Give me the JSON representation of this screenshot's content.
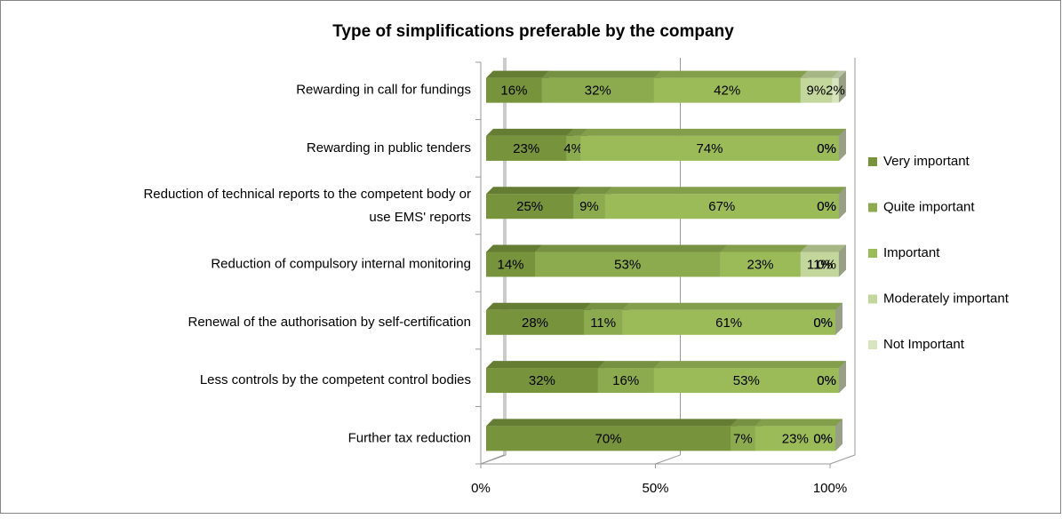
{
  "chart_data": {
    "type": "stacked_bar_horizontal",
    "title": "Type of simplifications preferable by the company",
    "categories": [
      "Rewarding in call for fundings",
      "Rewarding in public tenders",
      "Reduction of technical reports to the competent body or use EMS' reports",
      "Reduction of compulsory internal monitoring",
      "Renewal of the authorisation by self-certification",
      "Less controls by the competent control bodies",
      "Further tax reduction"
    ],
    "series": [
      {
        "name": "Very important",
        "color": "#77933c",
        "values": [
          16,
          23,
          25,
          14,
          28,
          32,
          70
        ],
        "value_labels": [
          "16%",
          "23%",
          "25%",
          "14%",
          "28%",
          "32%",
          "70%"
        ]
      },
      {
        "name": "Quite important",
        "color": "#8cab4e",
        "values": [
          32,
          4,
          9,
          53,
          11,
          16,
          7
        ],
        "value_labels": [
          "32%",
          "4%",
          "9%",
          "53%",
          "11%",
          "16%",
          "7%"
        ]
      },
      {
        "name": "Important",
        "color": "#9bbb59",
        "values": [
          42,
          74,
          67,
          23,
          61,
          53,
          23
        ],
        "value_labels": [
          "42%",
          "74%",
          "67%",
          "23%",
          "61%",
          "53%",
          "23%"
        ]
      },
      {
        "name": "Moderately important",
        "color": "#c3d69b",
        "values": [
          9,
          0,
          0,
          11,
          0,
          0,
          0
        ],
        "value_labels": [
          "9%",
          "0%",
          "0%",
          "11%",
          "0%",
          "0%",
          "0%"
        ]
      },
      {
        "name": "Not Important",
        "color": "#d7e4bd",
        "values": [
          2,
          0,
          0,
          0,
          0,
          0,
          0
        ],
        "value_labels": [
          "2%",
          "0%",
          "0%",
          "0%",
          "0%",
          "0%",
          "0%"
        ]
      }
    ],
    "xlim": [
      0,
      100
    ],
    "xticks": [
      {
        "value": 0,
        "label": "0%"
      },
      {
        "value": 50,
        "label": "50%"
      },
      {
        "value": 100,
        "label": "100%"
      }
    ],
    "grid": true,
    "legend": "right"
  }
}
